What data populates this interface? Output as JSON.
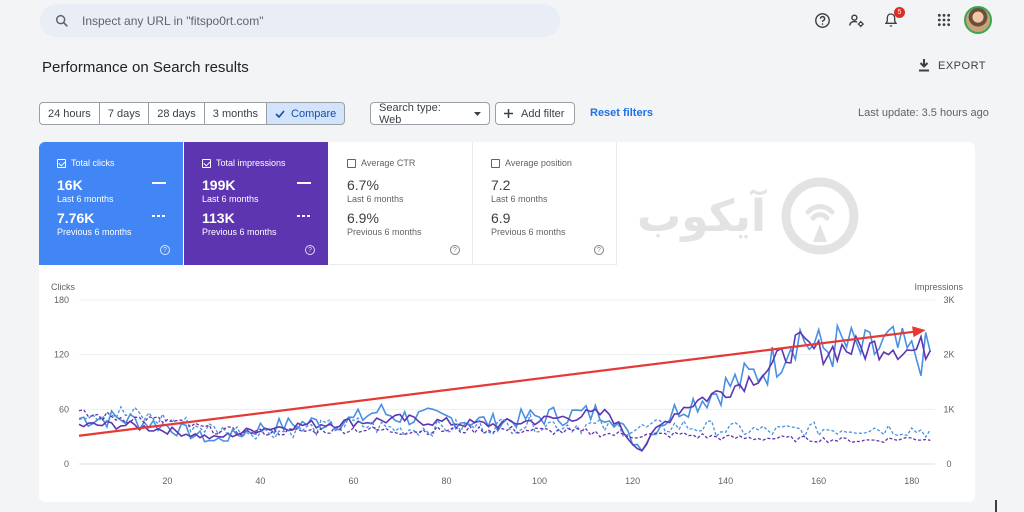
{
  "search": {
    "placeholder": "Inspect any URL in \"fitspo0rt.com\""
  },
  "topbar": {
    "notification_count": "5"
  },
  "header": {
    "title": "Performance on Search results",
    "export_label": "EXPORT"
  },
  "filters": {
    "ranges": [
      "24 hours",
      "7 days",
      "28 days",
      "3 months"
    ],
    "compare_label": "Compare",
    "search_type": "Search type: Web",
    "add_filter": "Add filter",
    "reset": "Reset filters",
    "last_update": "Last update: 3.5 hours ago"
  },
  "metrics": {
    "clicks": {
      "label": "Total clicks",
      "value": "16K",
      "period": "Last 6 months",
      "value2": "7.76K",
      "period2": "Previous 6 months",
      "checked": true
    },
    "impressions": {
      "label": "Total impressions",
      "value": "199K",
      "period": "Last 6 months",
      "value2": "113K",
      "period2": "Previous 6 months",
      "checked": true
    },
    "ctr": {
      "label": "Average CTR",
      "value": "6.7%",
      "period": "Last 6 months",
      "value2": "6.9%",
      "period2": "Previous 6 months",
      "checked": false
    },
    "position": {
      "label": "Average position",
      "value": "7.2",
      "period": "Last 6 months",
      "value2": "6.9",
      "period2": "Previous 6 months",
      "checked": false
    }
  },
  "watermark": {
    "text": "آیکوب"
  },
  "colors": {
    "clicks": "#4285f4",
    "impressions": "#5e35b1",
    "trend": "#e53935"
  },
  "chart_data": {
    "type": "line",
    "left_axis_label": "Clicks",
    "right_axis_label": "Impressions",
    "left_ylim": [
      0,
      180
    ],
    "left_ticks": [
      "0",
      "60",
      "120",
      "180"
    ],
    "right_ylim": [
      0,
      3000
    ],
    "right_ticks": [
      "0",
      "1K",
      "2K",
      "3K"
    ],
    "x_ticks": [
      "20",
      "40",
      "60",
      "80",
      "100",
      "120",
      "140",
      "160",
      "180"
    ],
    "xlim": [
      1,
      185
    ],
    "grid": true,
    "series": [
      {
        "key": "clicks_current",
        "style": "solid",
        "color": "#4a90e2",
        "anchors": [
          [
            1,
            50
          ],
          [
            10,
            50
          ],
          [
            20,
            42
          ],
          [
            30,
            25
          ],
          [
            40,
            40
          ],
          [
            50,
            45
          ],
          [
            60,
            48
          ],
          [
            65,
            58
          ],
          [
            70,
            52
          ],
          [
            80,
            50
          ],
          [
            90,
            46
          ],
          [
            100,
            52
          ],
          [
            110,
            55
          ],
          [
            115,
            58
          ],
          [
            120,
            25
          ],
          [
            122,
            18
          ],
          [
            125,
            40
          ],
          [
            130,
            62
          ],
          [
            135,
            72
          ],
          [
            140,
            85
          ],
          [
            145,
            95
          ],
          [
            150,
            110
          ],
          [
            155,
            145
          ],
          [
            160,
            125
          ],
          [
            165,
            130
          ],
          [
            170,
            122
          ],
          [
            175,
            130
          ],
          [
            180,
            118
          ],
          [
            184,
            120
          ]
        ]
      },
      {
        "key": "impressions_current",
        "style": "solid",
        "color": "#5e35b1",
        "anchors": [
          [
            1,
            700
          ],
          [
            10,
            720
          ],
          [
            20,
            620
          ],
          [
            30,
            470
          ],
          [
            40,
            650
          ],
          [
            50,
            720
          ],
          [
            60,
            770
          ],
          [
            70,
            820
          ],
          [
            80,
            760
          ],
          [
            90,
            720
          ],
          [
            100,
            800
          ],
          [
            110,
            900
          ],
          [
            115,
            920
          ],
          [
            120,
            380
          ],
          [
            122,
            250
          ],
          [
            125,
            620
          ],
          [
            130,
            1000
          ],
          [
            135,
            1200
          ],
          [
            140,
            1350
          ],
          [
            145,
            1550
          ],
          [
            150,
            1780
          ],
          [
            155,
            2180
          ],
          [
            160,
            2050
          ],
          [
            165,
            2120
          ],
          [
            170,
            2100
          ],
          [
            175,
            2200
          ],
          [
            180,
            2060
          ],
          [
            184,
            2150
          ]
        ]
      },
      {
        "key": "clicks_previous",
        "style": "dashed",
        "color": "#4a90e2",
        "anchors": [
          [
            1,
            60
          ],
          [
            10,
            55
          ],
          [
            20,
            48
          ],
          [
            30,
            38
          ],
          [
            40,
            35
          ],
          [
            50,
            38
          ],
          [
            60,
            44
          ],
          [
            70,
            38
          ],
          [
            80,
            40
          ],
          [
            90,
            42
          ],
          [
            100,
            45
          ],
          [
            110,
            42
          ],
          [
            120,
            38
          ],
          [
            130,
            42
          ],
          [
            140,
            38
          ],
          [
            150,
            36
          ],
          [
            160,
            38
          ],
          [
            170,
            40
          ],
          [
            180,
            38
          ],
          [
            184,
            36
          ]
        ]
      },
      {
        "key": "impressions_previous",
        "style": "dashed",
        "color": "#5e35b1",
        "anchors": [
          [
            1,
            900
          ],
          [
            10,
            850
          ],
          [
            20,
            780
          ],
          [
            30,
            620
          ],
          [
            40,
            580
          ],
          [
            50,
            600
          ],
          [
            60,
            640
          ],
          [
            70,
            600
          ],
          [
            80,
            620
          ],
          [
            90,
            630
          ],
          [
            100,
            610
          ],
          [
            110,
            580
          ],
          [
            120,
            520
          ],
          [
            130,
            540
          ],
          [
            140,
            480
          ],
          [
            150,
            470
          ],
          [
            160,
            450
          ],
          [
            170,
            430
          ],
          [
            180,
            470
          ],
          [
            184,
            460
          ]
        ]
      }
    ],
    "trend_line": {
      "color": "#e53935",
      "from": [
        1,
        31
      ],
      "to": [
        183,
        147
      ]
    }
  }
}
